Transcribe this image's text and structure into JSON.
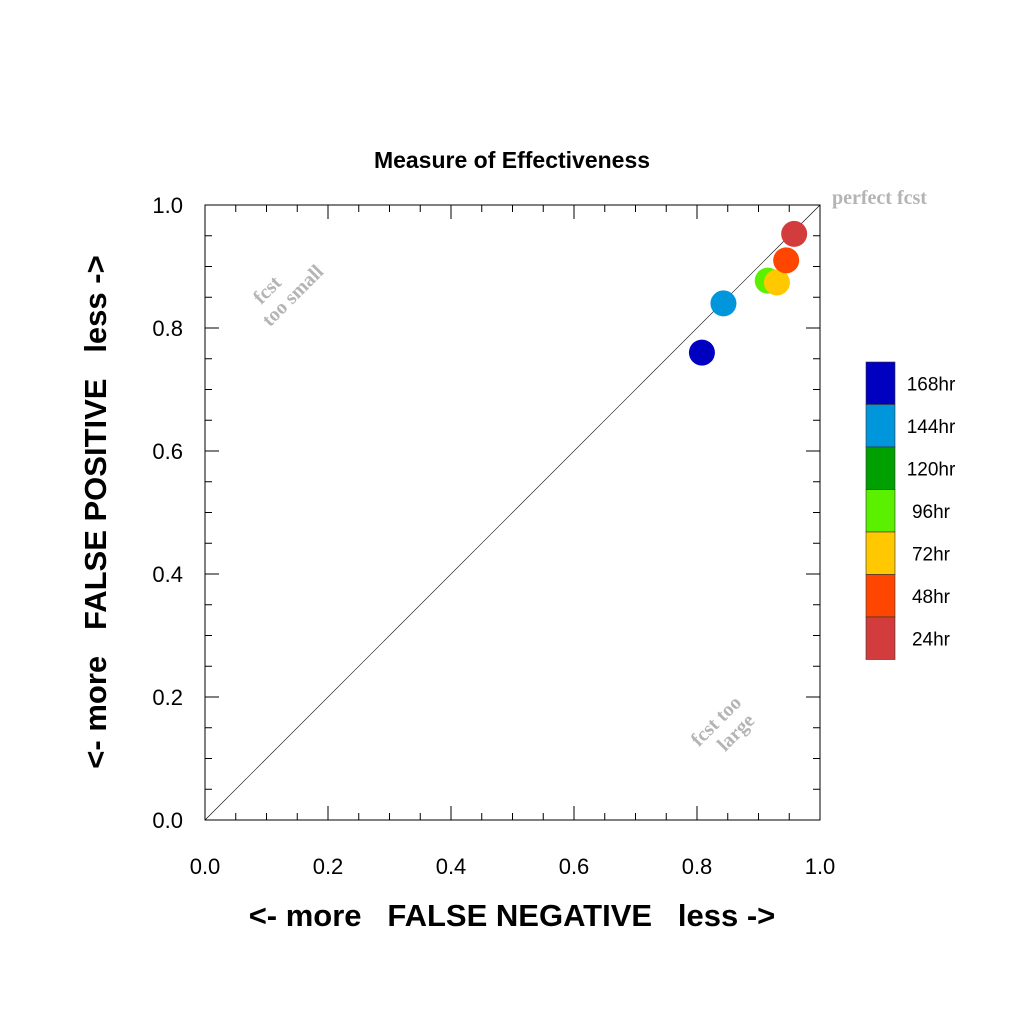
{
  "chart_data": {
    "type": "scatter",
    "title": "Measure of Effectiveness",
    "xlabel": "<- more   FALSE NEGATIVE   less ->",
    "ylabel": "<- more   FALSE POSITIVE   less ->",
    "xlim": [
      0.0,
      1.0
    ],
    "ylim": [
      0.0,
      1.0
    ],
    "x_ticks": [
      "0.0",
      "0.2",
      "0.4",
      "0.6",
      "0.8",
      "1.0"
    ],
    "y_ticks": [
      "0.0",
      "0.2",
      "0.4",
      "0.6",
      "0.8",
      "1.0"
    ],
    "x_tick_values": [
      0.0,
      0.2,
      0.4,
      0.6,
      0.8,
      1.0
    ],
    "y_tick_values": [
      0.0,
      0.2,
      0.4,
      0.6,
      0.8,
      1.0
    ],
    "diagonal_line": true,
    "grid": false,
    "legend_position": "right",
    "annotations": {
      "perfect": "perfect fcst",
      "too_small_line1": "fcst",
      "too_small_line2": "too small",
      "too_large_line1": "fcst too",
      "too_large_line2": "large"
    },
    "series": [
      {
        "name": "168hr",
        "color": "#0000c0",
        "x": 0.808,
        "y": 0.76
      },
      {
        "name": "144hr",
        "color": "#0096dc",
        "x": 0.843,
        "y": 0.84
      },
      {
        "name": "120hr",
        "color": "#00a000",
        "x": null,
        "y": null
      },
      {
        "name": "96hr",
        "color": "#5af000",
        "x": 0.915,
        "y": 0.877
      },
      {
        "name": "72hr",
        "color": "#ffc800",
        "x": 0.93,
        "y": 0.874
      },
      {
        "name": "48hr",
        "color": "#ff4600",
        "x": 0.945,
        "y": 0.91
      },
      {
        "name": "24hr",
        "color": "#d23c3c",
        "x": 0.958,
        "y": 0.953
      }
    ]
  }
}
